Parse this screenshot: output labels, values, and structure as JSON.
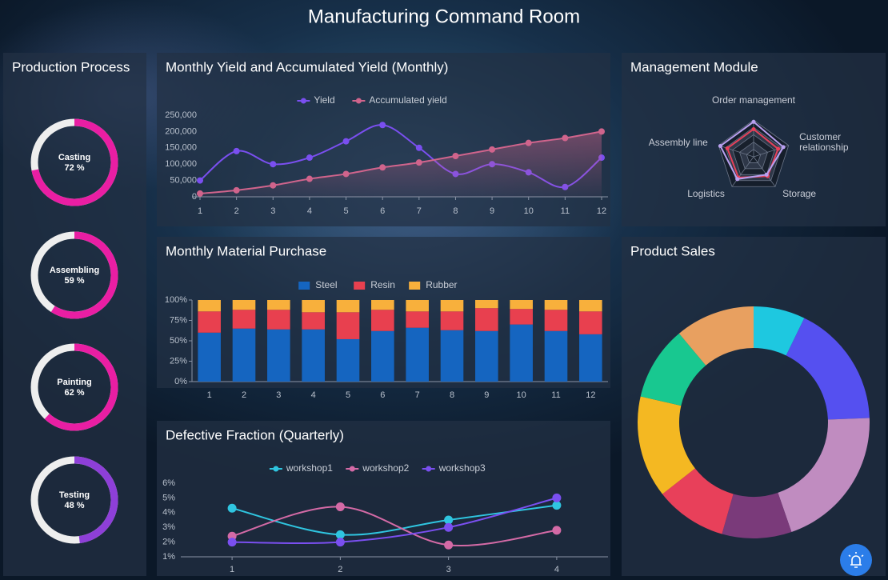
{
  "title": "Manufacturing Command Room",
  "chart_data": [
    {
      "type": "gauge",
      "title": "Production Process",
      "categories": [
        "Casting",
        "Assembling",
        "Painting",
        "Testing"
      ],
      "values": [
        72,
        59,
        62,
        48
      ],
      "value_labels": [
        "72 %",
        "59 %",
        "62 %",
        "48 %"
      ],
      "colors": [
        "#e91ea3",
        "#e91ea3",
        "#e91ea3",
        "#8e3fd8"
      ],
      "track_color": "#eeeeee",
      "ylim": [
        0,
        100
      ]
    },
    {
      "type": "line",
      "title": "Monthly Yield and Accumulated Yield (Monthly)",
      "smooth": true,
      "x": [
        1,
        2,
        3,
        4,
        5,
        6,
        7,
        8,
        9,
        10,
        11,
        12
      ],
      "xlim": [
        1,
        12
      ],
      "xticks": [
        1,
        2,
        3,
        4,
        5,
        6,
        7,
        8,
        9,
        10,
        11,
        12
      ],
      "ylim": [
        0,
        250000
      ],
      "yticks": [
        0,
        {
          "value": 50000,
          "label": "50,000"
        },
        {
          "value": 100000,
          "label": "100,000"
        },
        {
          "value": 150000,
          "label": "150,000"
        },
        {
          "value": 200000,
          "label": "200,000"
        },
        {
          "value": 250000,
          "label": "250,000"
        }
      ],
      "series": [
        {
          "name": "Yield",
          "color": "#7a4ff0",
          "values": [
            50000,
            140000,
            100000,
            120000,
            170000,
            220000,
            150000,
            70000,
            100000,
            75000,
            30000,
            120000
          ]
        },
        {
          "name": "Accumulated yield",
          "color": "#d0648c",
          "area": true,
          "values": [
            10000,
            20000,
            35000,
            55000,
            70000,
            90000,
            105000,
            125000,
            145000,
            165000,
            180000,
            200000
          ]
        }
      ]
    },
    {
      "type": "bar",
      "stacked": true,
      "title": "Monthly Material Purchase",
      "categories": [
        "1",
        "2",
        "3",
        "4",
        "5",
        "6",
        "7",
        "8",
        "9",
        "10",
        "11",
        "12"
      ],
      "ylim": [
        0,
        100
      ],
      "yticks": [
        {
          "value": 0,
          "label": "0%"
        },
        {
          "value": 25,
          "label": "25%"
        },
        {
          "value": 50,
          "label": "50%"
        },
        {
          "value": 75,
          "label": "75%"
        },
        {
          "value": 100,
          "label": "100%"
        }
      ],
      "series": [
        {
          "name": "Steel",
          "color": "#1565c0",
          "values": [
            60,
            65,
            64,
            64,
            52,
            62,
            66,
            63,
            62,
            70,
            62,
            58
          ]
        },
        {
          "name": "Resin",
          "color": "#e8404f",
          "values": [
            26,
            23,
            24,
            21,
            33,
            26,
            20,
            23,
            28,
            19,
            26,
            28
          ]
        },
        {
          "name": "Rubber",
          "color": "#f8b03c",
          "values": [
            14,
            12,
            12,
            15,
            15,
            12,
            14,
            14,
            10,
            11,
            12,
            14
          ]
        }
      ]
    },
    {
      "type": "line",
      "title": "Defective Fraction (Quarterly)",
      "smooth": true,
      "x": [
        1,
        2,
        3,
        4
      ],
      "xlim": [
        0.6,
        4.4
      ],
      "xticks": [
        1,
        2,
        3,
        4
      ],
      "ylim": [
        1,
        6
      ],
      "yticks": [
        {
          "value": 1,
          "label": "1%"
        },
        {
          "value": 2,
          "label": "2%"
        },
        {
          "value": 3,
          "label": "3%"
        },
        {
          "value": 4,
          "label": "4%"
        },
        {
          "value": 5,
          "label": "5%"
        },
        {
          "value": 6,
          "label": "6%"
        }
      ],
      "series": [
        {
          "name": "workshop1",
          "color": "#2fc5e0",
          "values": [
            4.3,
            2.5,
            3.5,
            4.5
          ]
        },
        {
          "name": "workshop2",
          "color": "#d46aa6",
          "values": [
            2.4,
            4.4,
            1.8,
            2.8
          ]
        },
        {
          "name": "workshop3",
          "color": "#7a4ff0",
          "values": [
            2.0,
            2.0,
            3.0,
            5.0
          ]
        }
      ]
    },
    {
      "type": "radar",
      "title": "Management Module",
      "indicators": [
        "Order management",
        "Customer relationship",
        "Storage",
        "Logistics",
        "Assembly line"
      ],
      "ylim": [
        0,
        100
      ],
      "series": [
        {
          "color": "#e8405a",
          "values": [
            75,
            70,
            65,
            70,
            75
          ]
        },
        {
          "color": "#b9a0f0",
          "values": [
            95,
            85,
            60,
            75,
            95
          ]
        }
      ]
    },
    {
      "type": "pie",
      "title": "Product Sales",
      "donut": true,
      "values": [
        7.2,
        17.2,
        20.3,
        9.7,
        10,
        14.2,
        10.3,
        11.1
      ],
      "colors": [
        "#1ec8e0",
        "#5550f0",
        "#c08cc0",
        "#7a3a7a",
        "#e8405a",
        "#f4b822",
        "#18c890",
        "#e8a060"
      ]
    }
  ]
}
